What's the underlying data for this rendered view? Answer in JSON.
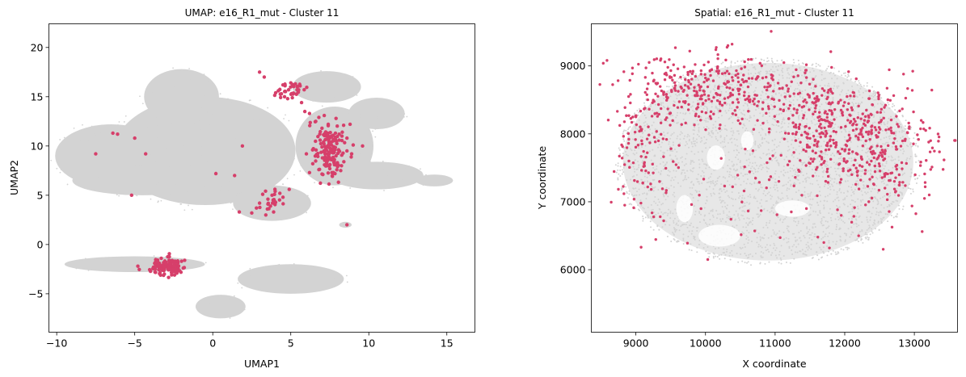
{
  "chart_data": [
    {
      "type": "scatter",
      "title": "UMAP: e16_R1_mut - Cluster 11",
      "xlabel": "UMAP1",
      "ylabel": "UMAP2",
      "xlim": [
        -10.5,
        16.8
      ],
      "ylim": [
        -8.9,
        22.4
      ],
      "xticks": [
        -10,
        -5,
        0,
        5,
        10,
        15
      ],
      "yticks": [
        -5,
        0,
        5,
        10,
        15,
        20
      ],
      "grid": false,
      "series": [
        {
          "role": "background",
          "color": "#d3d3d3",
          "blobs": [
            {
              "cx": -0.5,
              "cy": 9.5,
              "rx": 5.8,
              "ry": 5.5
            },
            {
              "cx": -6.5,
              "cy": 9.0,
              "rx": 3.6,
              "ry": 3.2
            },
            {
              "cx": -2.0,
              "cy": 15.0,
              "rx": 2.4,
              "ry": 2.8
            },
            {
              "cx": -4.5,
              "cy": 6.5,
              "rx": 4.5,
              "ry": 1.5
            },
            {
              "cx": 7.3,
              "cy": 16.0,
              "rx": 2.2,
              "ry": 1.6
            },
            {
              "cx": 7.8,
              "cy": 10.0,
              "rx": 2.5,
              "ry": 4.0
            },
            {
              "cx": 10.5,
              "cy": 7.0,
              "rx": 3.0,
              "ry": 1.4
            },
            {
              "cx": 10.5,
              "cy": 13.3,
              "rx": 1.8,
              "ry": 1.6
            },
            {
              "cx": 3.8,
              "cy": 4.2,
              "rx": 2.5,
              "ry": 1.8
            },
            {
              "cx": 14.2,
              "cy": 6.5,
              "rx": 1.2,
              "ry": 0.6
            },
            {
              "cx": 8.5,
              "cy": 2.0,
              "rx": 0.4,
              "ry": 0.3
            },
            {
              "cx": -5.0,
              "cy": -2.0,
              "rx": 4.5,
              "ry": 0.8
            },
            {
              "cx": 5.0,
              "cy": -3.5,
              "rx": 3.4,
              "ry": 1.5
            },
            {
              "cx": 0.5,
              "cy": -6.3,
              "rx": 1.6,
              "ry": 1.2
            }
          ]
        },
        {
          "role": "highlight",
          "name": "Cluster 11",
          "color": "#d63f6a",
          "points": [
            [
              3.0,
              17.5
            ],
            [
              3.3,
              17.0
            ],
            [
              4.5,
              16.2
            ],
            [
              5.0,
              16.4
            ],
            [
              5.3,
              16.3
            ],
            [
              5.6,
              16.1
            ],
            [
              4.4,
              15.3
            ],
            [
              4.6,
              15.0
            ],
            [
              4.8,
              14.8
            ],
            [
              5.1,
              14.9
            ],
            [
              4.2,
              15.6
            ],
            [
              5.4,
              15.7
            ],
            [
              5.9,
              13.5
            ],
            [
              6.2,
              13.3
            ],
            [
              6.6,
              12.5
            ],
            [
              7.0,
              11.8
            ],
            [
              7.2,
              11.3
            ],
            [
              7.4,
              10.8
            ],
            [
              7.1,
              10.4
            ],
            [
              7.6,
              10.1
            ],
            [
              7.0,
              9.9
            ],
            [
              7.8,
              9.7
            ],
            [
              7.5,
              9.4
            ],
            [
              7.2,
              9.2
            ],
            [
              7.9,
              9.0
            ],
            [
              7.6,
              8.6
            ],
            [
              7.3,
              8.3
            ],
            [
              7.8,
              8.1
            ],
            [
              8.0,
              7.9
            ],
            [
              7.5,
              7.7
            ],
            [
              8.2,
              7.5
            ],
            [
              7.7,
              7.2
            ],
            [
              8.4,
              8.4
            ],
            [
              8.6,
              9.5
            ],
            [
              8.1,
              10.6
            ],
            [
              8.3,
              11.4
            ],
            [
              8.8,
              12.2
            ],
            [
              6.8,
              12.9
            ],
            [
              6.4,
              9.6
            ],
            [
              6.0,
              9.2
            ],
            [
              9.0,
              10.1
            ],
            [
              9.6,
              10.0
            ],
            [
              8.9,
              9.2
            ],
            [
              6.2,
              7.3
            ],
            [
              6.8,
              7.6
            ],
            [
              7.4,
              12.2
            ],
            [
              7.9,
              12.8
            ],
            [
              8.6,
              10.8
            ],
            [
              4.0,
              5.4
            ],
            [
              4.3,
              5.2
            ],
            [
              3.8,
              5.0
            ],
            [
              4.5,
              4.8
            ],
            [
              3.7,
              3.9
            ],
            [
              3.5,
              3.6
            ],
            [
              3.9,
              3.3
            ],
            [
              3.4,
              3.0
            ],
            [
              3.0,
              4.2
            ],
            [
              2.8,
              3.7
            ],
            [
              2.5,
              3.2
            ],
            [
              3.2,
              5.1
            ],
            [
              1.7,
              3.3
            ],
            [
              4.9,
              5.6
            ],
            [
              8.6,
              2.0
            ],
            [
              -7.5,
              9.2
            ],
            [
              -6.4,
              11.3
            ],
            [
              -6.1,
              11.2
            ],
            [
              -5.0,
              10.8
            ],
            [
              -5.2,
              5.0
            ],
            [
              -4.3,
              9.2
            ],
            [
              1.4,
              7.0
            ],
            [
              1.9,
              10.0
            ],
            [
              0.2,
              7.2
            ],
            [
              -4.8,
              -2.2
            ],
            [
              -3.8,
              -2.3
            ],
            [
              -3.5,
              -2.1
            ],
            [
              -3.3,
              -1.4
            ],
            [
              -2.8,
              -1.6
            ],
            [
              -2.5,
              -1.8
            ],
            [
              -2.0,
              -1.7
            ],
            [
              -1.8,
              -1.6
            ],
            [
              -3.7,
              -2.8
            ],
            [
              -2.3,
              -2.9
            ],
            [
              -3.1,
              -3.0
            ],
            [
              -3.6,
              -1.8
            ]
          ],
          "dense_clusters": [
            {
              "cx": 7.4,
              "cy": 9.5,
              "sx": 0.45,
              "sy": 1.6,
              "n": 130
            },
            {
              "cx": 4.8,
              "cy": 15.6,
              "sx": 0.5,
              "sy": 0.45,
              "n": 30
            },
            {
              "cx": -2.9,
              "cy": -2.2,
              "sx": 0.45,
              "sy": 0.4,
              "n": 120
            },
            {
              "cx": 3.8,
              "cy": 4.2,
              "sx": 0.35,
              "sy": 0.6,
              "n": 16
            }
          ]
        }
      ]
    },
    {
      "type": "scatter",
      "title": "Spatial: e16_R1_mut - Cluster 11",
      "xlabel": "X coordinate",
      "ylabel": "Y coordinate",
      "xlim": [
        8360,
        13620
      ],
      "ylim": [
        5080,
        9620
      ],
      "xticks": [
        9000,
        10000,
        11000,
        12000,
        13000
      ],
      "yticks": [
        6000,
        7000,
        8000,
        9000
      ],
      "grid": false,
      "series": [
        {
          "role": "background",
          "color": "#d3d3d3",
          "tissue": {
            "cx": 10900,
            "cy": 7590,
            "rx": 2150,
            "ry": 1500
          },
          "extras": [
            {
              "cx": 9050,
              "cy": 7400,
              "rx": 350,
              "ry": 600
            },
            {
              "cx": 12500,
              "cy": 8200,
              "rx": 500,
              "ry": 700
            },
            {
              "cx": 11000,
              "cy": 6300,
              "rx": 1200,
              "ry": 300
            }
          ]
        },
        {
          "role": "highlight",
          "name": "Cluster 11",
          "color": "#d63f6a",
          "regions": [
            {
              "cx": 10100,
              "cy": 8650,
              "sx": 700,
              "sy": 260,
              "n": 330
            },
            {
              "cx": 12100,
              "cy": 8000,
              "sx": 600,
              "sy": 380,
              "n": 330
            },
            {
              "cx": 11500,
              "cy": 8150,
              "sx": 300,
              "sy": 350,
              "n": 90
            },
            {
              "cx": 9150,
              "cy": 7700,
              "sx": 220,
              "sy": 500,
              "n": 90
            },
            {
              "cx": 12700,
              "cy": 7400,
              "sx": 280,
              "sy": 300,
              "n": 70
            },
            {
              "cx": 10800,
              "cy": 7200,
              "sx": 900,
              "sy": 500,
              "n": 40
            }
          ],
          "points": [
            [
              11800,
              9210
            ],
            [
              11700,
              6400
            ],
            [
              11780,
              6320
            ],
            [
              12200,
              6500
            ],
            [
              11950,
              6800
            ],
            [
              12100,
              6700
            ],
            [
              10800,
              6870
            ],
            [
              11450,
              6900
            ],
            [
              9350,
              6780
            ],
            [
              9400,
              6720
            ],
            [
              9100,
              7280
            ],
            [
              9000,
              8250
            ],
            [
              8900,
              7600
            ]
          ]
        }
      ]
    }
  ]
}
